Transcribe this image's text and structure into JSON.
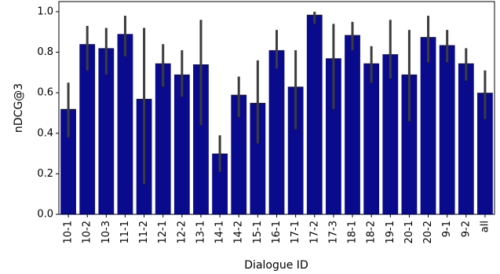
{
  "chart_data": {
    "type": "bar",
    "xlabel": "Dialogue ID",
    "ylabel": "nDCG@3",
    "ylim": [
      0,
      1.05
    ],
    "yticks": [
      "0.0",
      "0.2",
      "0.4",
      "0.6",
      "0.8",
      "1.0"
    ],
    "grid": false,
    "bar_color": "#0a0a8c",
    "error_color": "#3c3c3c",
    "categories": [
      "10-1",
      "10-2",
      "10-3",
      "11-1",
      "11-2",
      "12-1",
      "12-2",
      "13-1",
      "14-1",
      "14-2",
      "15-1",
      "16-1",
      "17-1",
      "17-2",
      "17-3",
      "18-1",
      "18-2",
      "19-1",
      "20-1",
      "20-2",
      "9-1",
      "9-2",
      "all"
    ],
    "values": [
      0.52,
      0.84,
      0.82,
      0.89,
      0.57,
      0.745,
      0.69,
      0.74,
      0.3,
      0.59,
      0.55,
      0.81,
      0.63,
      0.985,
      0.77,
      0.885,
      0.745,
      0.79,
      0.69,
      0.875,
      0.835,
      0.745,
      0.6
    ],
    "err_low": [
      0.38,
      0.71,
      0.69,
      0.78,
      0.15,
      0.63,
      0.58,
      0.44,
      0.21,
      0.48,
      0.35,
      0.72,
      0.42,
      0.94,
      0.52,
      0.81,
      0.65,
      0.67,
      0.46,
      0.75,
      0.75,
      0.66,
      0.47
    ],
    "err_high": [
      0.65,
      0.93,
      0.92,
      0.98,
      0.92,
      0.84,
      0.81,
      0.96,
      0.39,
      0.68,
      0.76,
      0.91,
      0.81,
      1.0,
      0.94,
      0.95,
      0.83,
      0.96,
      0.91,
      0.98,
      0.91,
      0.82,
      0.71
    ]
  }
}
